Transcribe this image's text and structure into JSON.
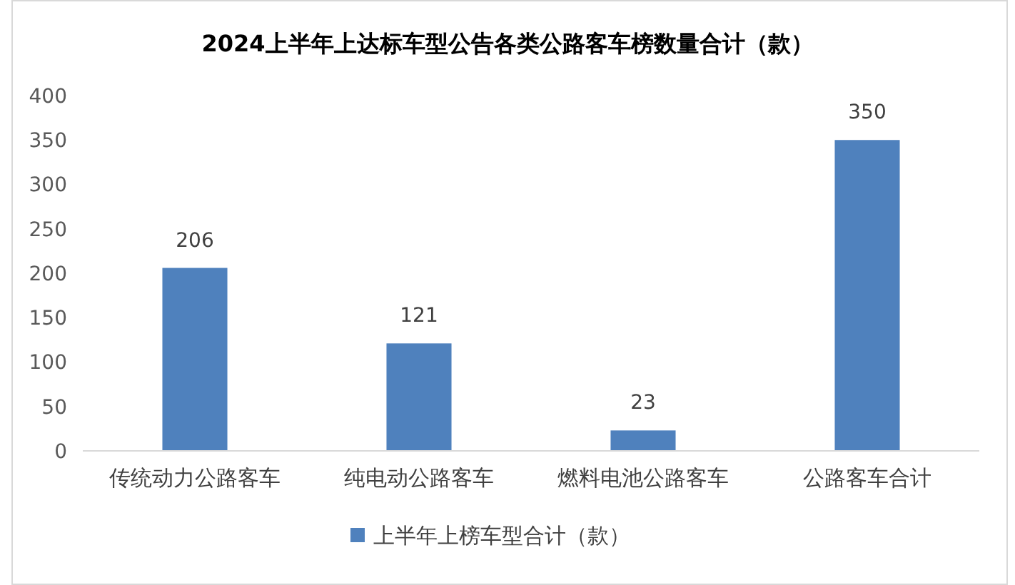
{
  "chart_data": {
    "type": "bar",
    "title": "2024上半年上达标车型公告各类公路客车榜数量合计（款）",
    "categories": [
      "传统动力公路客车",
      "纯电动公路客车",
      "燃料电池公路客车",
      "公路客车合计"
    ],
    "series": [
      {
        "name": "上半年上榜车型合计（款）",
        "color": "#4f81bd",
        "values": [
          206,
          121,
          23,
          350
        ]
      }
    ],
    "ylim": [
      0,
      400
    ],
    "yticks": [
      0,
      50,
      100,
      150,
      200,
      250,
      300,
      350,
      400
    ],
    "data_labels": true,
    "legend": "bottom"
  }
}
